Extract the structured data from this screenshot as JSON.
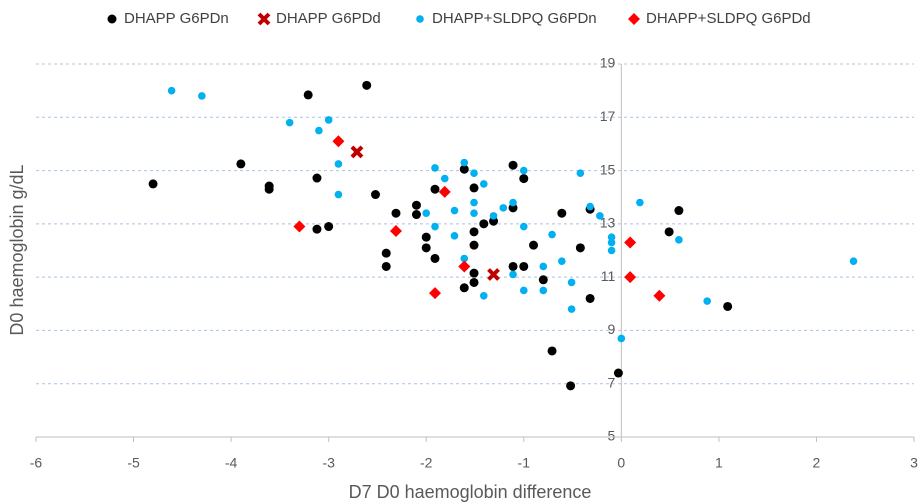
{
  "chart_data": {
    "type": "scatter",
    "x_label": "D7 D0 haemoglobin difference",
    "y_label": "D0 haemoglobin g/dL",
    "xlim": [
      -6,
      3
    ],
    "xticks": [
      -6,
      -5,
      -4,
      -3,
      -2,
      -1,
      0,
      1,
      2,
      3
    ],
    "ylim": [
      5,
      19
    ],
    "yticks": [
      5,
      7,
      9,
      11,
      13,
      15,
      17,
      19
    ],
    "grid": true,
    "legend": "top",
    "series": [
      {
        "name": "DHAPP G6PDn",
        "color": "#000000",
        "marker": "circle",
        "x": [
          -4.8,
          -3.9,
          -3.61,
          -3.61,
          -3.21,
          -3.12,
          -3.12,
          -3.0,
          -2.61,
          -2.52,
          -2.41,
          -2.41,
          -2.31,
          -2.1,
          -2.1,
          -2.0,
          -2.0,
          -1.91,
          -1.91,
          -1.61,
          -1.51,
          -1.51,
          -1.51,
          -1.51,
          -1.51,
          -1.61,
          -1.41,
          -1.31,
          -1.11,
          -1.0,
          -1.11,
          -1.11,
          -1.0,
          -0.9,
          -0.8,
          -0.71,
          -0.61,
          -0.42,
          -0.52,
          -0.32,
          -0.32,
          -0.03,
          0.49,
          0.59,
          1.09
        ],
        "values": [
          14.5,
          15.25,
          14.42,
          14.3,
          17.84,
          14.72,
          12.8,
          12.9,
          18.2,
          14.1,
          11.9,
          11.4,
          13.4,
          13.7,
          13.35,
          12.5,
          12.1,
          14.3,
          11.7,
          15.05,
          14.35,
          12.7,
          12.2,
          11.15,
          10.8,
          10.6,
          13.0,
          13.1,
          15.2,
          14.7,
          13.6,
          11.4,
          11.4,
          12.2,
          10.9,
          8.23,
          13.4,
          12.1,
          6.92,
          13.55,
          10.2,
          7.4,
          12.7,
          13.5,
          9.9
        ]
      },
      {
        "name": "DHAPP G6PDd",
        "color": "#c00000",
        "marker": "cross",
        "x": [
          -2.71,
          -1.31
        ],
        "values": [
          15.7,
          11.1
        ]
      },
      {
        "name": "DHAPP+SLDPQ G6PDn",
        "color": "#00b0f0",
        "marker": "circle",
        "x": [
          -4.61,
          -4.3,
          -3.4,
          -3.0,
          -3.1,
          -2.9,
          -2.9,
          -1.91,
          -1.81,
          -2.0,
          -1.91,
          -1.71,
          -1.71,
          -1.61,
          -1.51,
          -1.51,
          -1.51,
          -1.41,
          -1.31,
          -1.21,
          -1.11,
          -1.0,
          -1.0,
          -1.61,
          -1.11,
          -1.41,
          -1.0,
          -0.8,
          -0.8,
          -0.71,
          -0.42,
          -0.61,
          -0.51,
          -0.51,
          -0.22,
          -0.32,
          -0.1,
          -0.1,
          -0.1,
          0.0,
          0.19,
          0.59,
          0.88,
          2.38
        ],
        "values": [
          18.0,
          17.8,
          16.8,
          16.9,
          16.5,
          15.25,
          14.1,
          15.1,
          14.7,
          13.4,
          12.9,
          13.5,
          12.55,
          15.3,
          14.9,
          13.8,
          13.4,
          14.5,
          13.3,
          13.6,
          13.8,
          15.0,
          12.9,
          11.7,
          11.1,
          10.3,
          10.5,
          11.4,
          10.5,
          12.6,
          14.9,
          11.6,
          10.8,
          9.8,
          13.3,
          13.65,
          12.5,
          12.0,
          12.3,
          8.7,
          13.8,
          12.4,
          10.1,
          11.6
        ]
      },
      {
        "name": "DHAPP+SLDPQ G6PDd",
        "color": "#ff0000",
        "marker": "diamond",
        "x": [
          -2.9,
          -3.3,
          -2.31,
          -1.81,
          -1.61,
          -1.91,
          0.09,
          0.09,
          0.39
        ],
        "values": [
          16.1,
          12.9,
          12.73,
          14.2,
          11.4,
          10.4,
          12.3,
          11.0,
          10.3
        ]
      }
    ]
  }
}
